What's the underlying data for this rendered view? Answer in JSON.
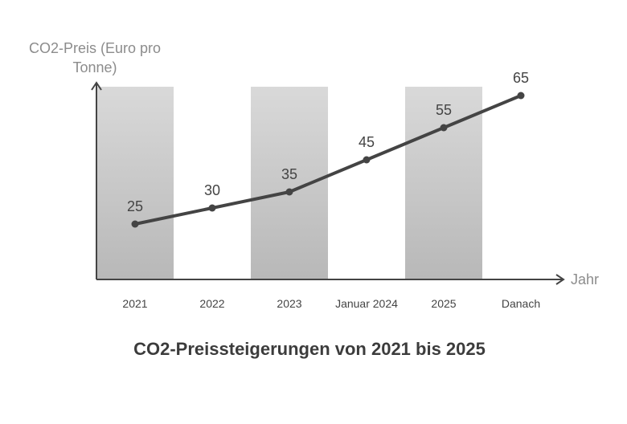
{
  "chart_data": {
    "type": "line",
    "title": "CO2-Preissteigerungen von 2021 bis 2025",
    "xlabel": "Jahr",
    "ylabel": "CO2-Preis (Euro pro Tonne)",
    "categories": [
      "2021",
      "2022",
      "2023",
      "Januar 2024",
      "2025",
      "Danach"
    ],
    "values": [
      25,
      30,
      35,
      45,
      55,
      65
    ],
    "data_labels": [
      "25",
      "30",
      "35",
      "45",
      "55",
      "65"
    ],
    "grid": false,
    "legend": "none",
    "colors": {
      "line": "#444444",
      "band_top": "#d9d9d9",
      "band_bottom": "#b8b8b8",
      "axis": "#444444",
      "axis_label": "#8c8c8c",
      "title": "#3c3c3c"
    }
  }
}
